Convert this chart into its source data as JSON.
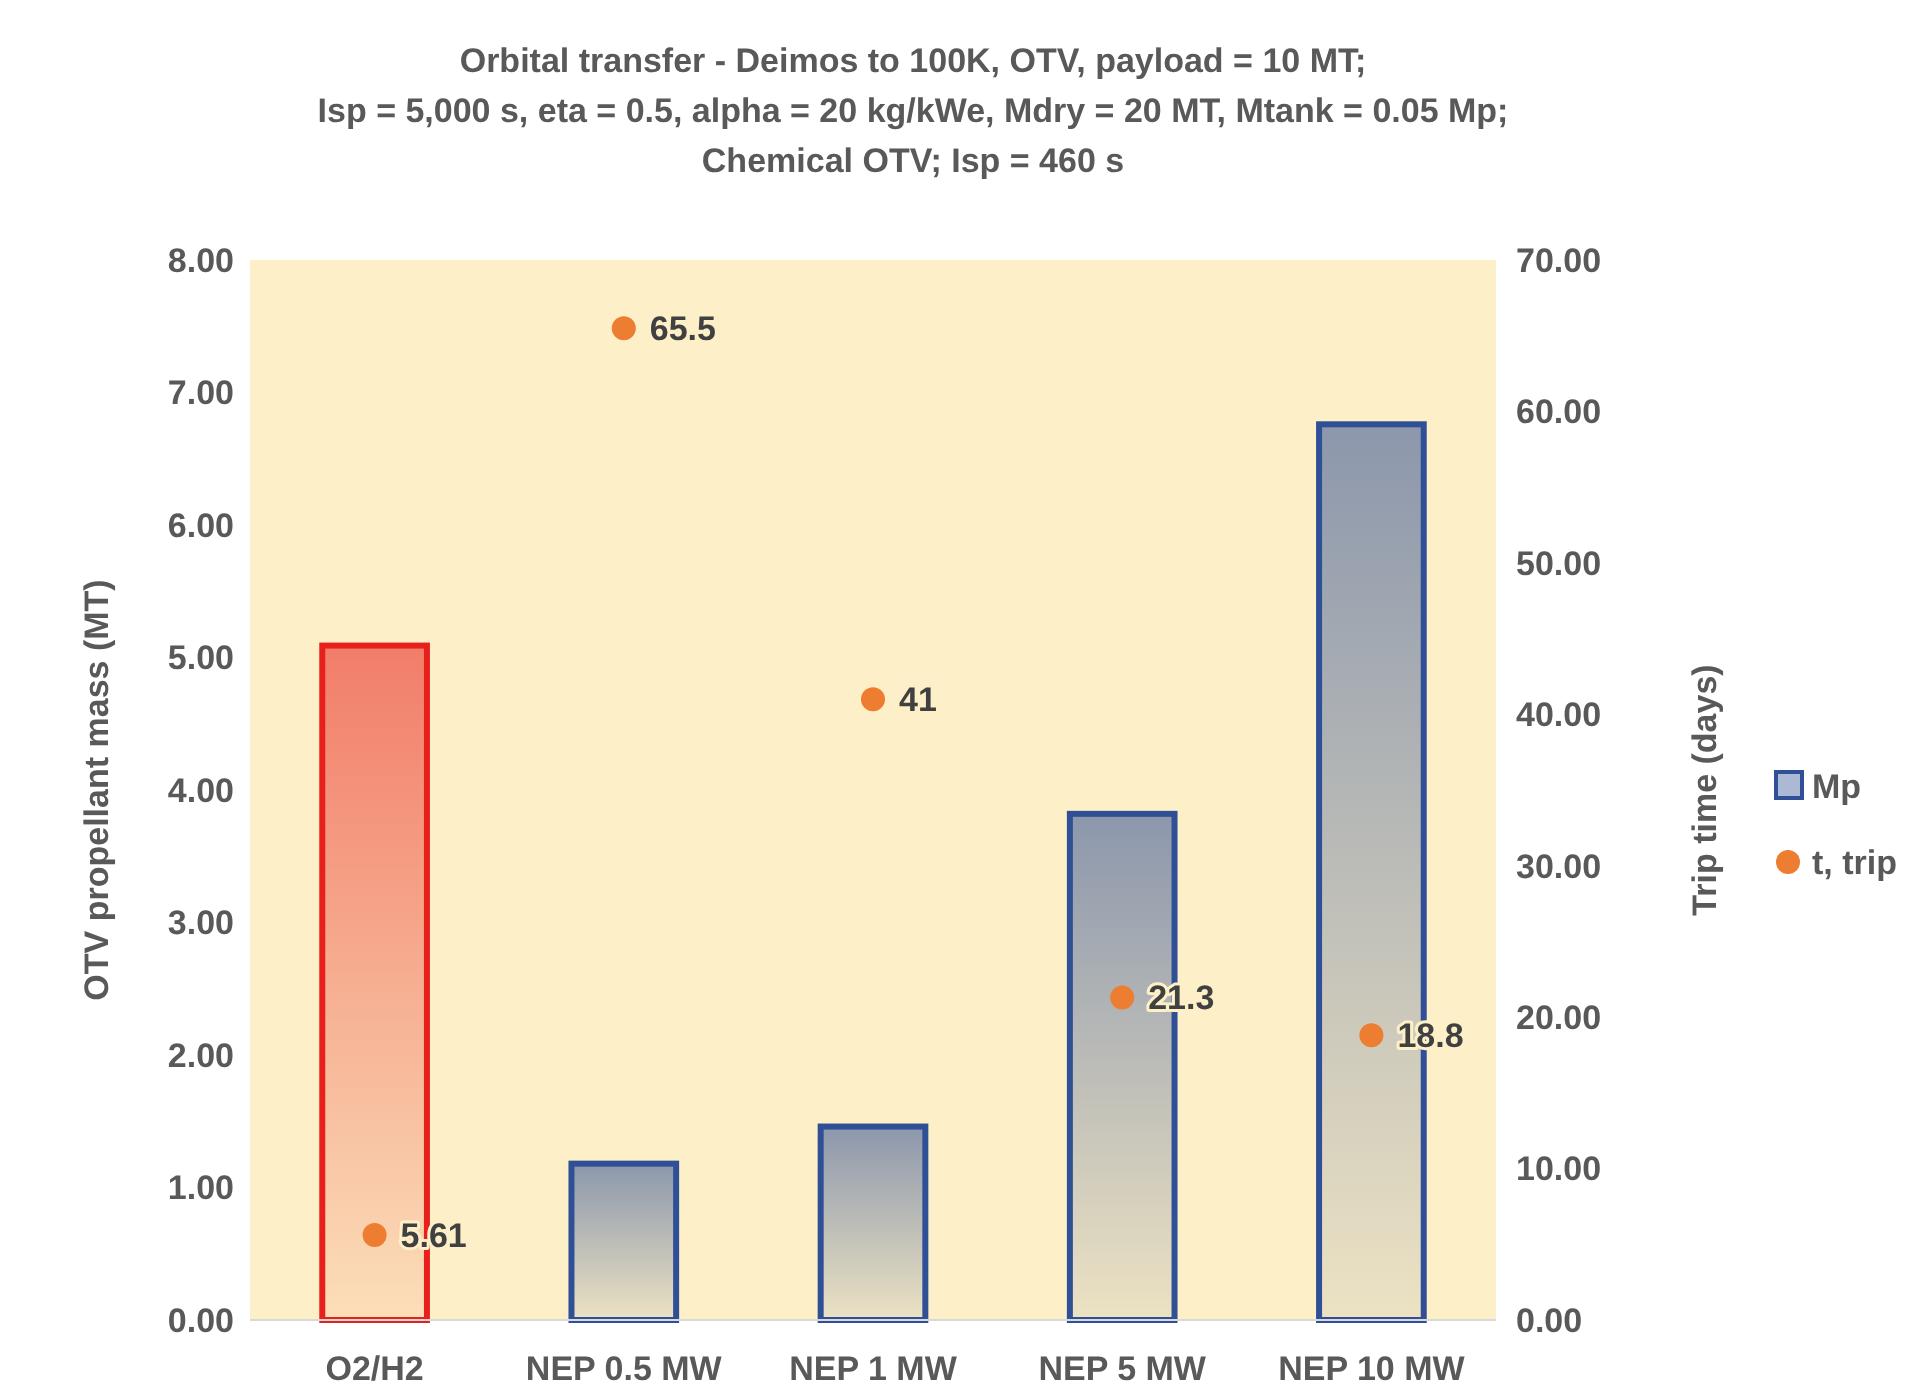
{
  "chart_data": {
    "type": "bar",
    "title": "Orbital transfer - Deimos to 100K, OTV, payload = 10 MT;\nIsp = 5,000 s, eta = 0.5, alpha = 20 kg/kWe, Mdry = 20 MT, Mtank = 0.05 Mp;\nChemical OTV; Isp = 460 s",
    "ylabel": "OTV propellant  mass (MT)",
    "y2label": "Trip time (days)",
    "categories": [
      "O2/H2",
      "NEP 0.5 MW",
      "NEP 1 MW",
      "NEP 5 MW",
      "NEP 10 MW"
    ],
    "series": [
      {
        "name": "Mp",
        "color": "#2f4f96",
        "colors": [
          "#e8201c",
          "#2f4f96",
          "#2f4f96",
          "#2f4f96",
          "#2f4f96"
        ],
        "values": [
          5.09,
          1.18,
          1.46,
          3.82,
          6.76
        ]
      },
      {
        "name": "t, trip",
        "type": "scatter",
        "axis": "y2",
        "color": "#ed7d31",
        "marker": "circle",
        "values": [
          5.61,
          65.5,
          41,
          21.3,
          18.8
        ],
        "value_labels": [
          "5.61",
          "65.5",
          "41",
          "21.3",
          "18.8"
        ]
      }
    ],
    "ylim": [
      0,
      8
    ],
    "yticks": [
      {
        "value": 0,
        "label": "0.00"
      },
      {
        "value": 1,
        "label": "1.00"
      },
      {
        "value": 2,
        "label": "2.00"
      },
      {
        "value": 3,
        "label": "3.00"
      },
      {
        "value": 4,
        "label": "4.00"
      },
      {
        "value": 5,
        "label": "5.00"
      },
      {
        "value": 6,
        "label": "6.00"
      },
      {
        "value": 7,
        "label": "7.00"
      },
      {
        "value": 8,
        "label": "8.00"
      }
    ],
    "y2lim": [
      0,
      70
    ],
    "y2ticks": [
      {
        "value": 0,
        "label": "0.00"
      },
      {
        "value": 10,
        "label": "10.00"
      },
      {
        "value": 20,
        "label": "20.00"
      },
      {
        "value": 30,
        "label": "30.00"
      },
      {
        "value": 40,
        "label": "40.00"
      },
      {
        "value": 50,
        "label": "50.00"
      },
      {
        "value": 60,
        "label": "60.00"
      },
      {
        "value": 70,
        "label": "70.00"
      }
    ],
    "grid": false,
    "legend": "right"
  }
}
